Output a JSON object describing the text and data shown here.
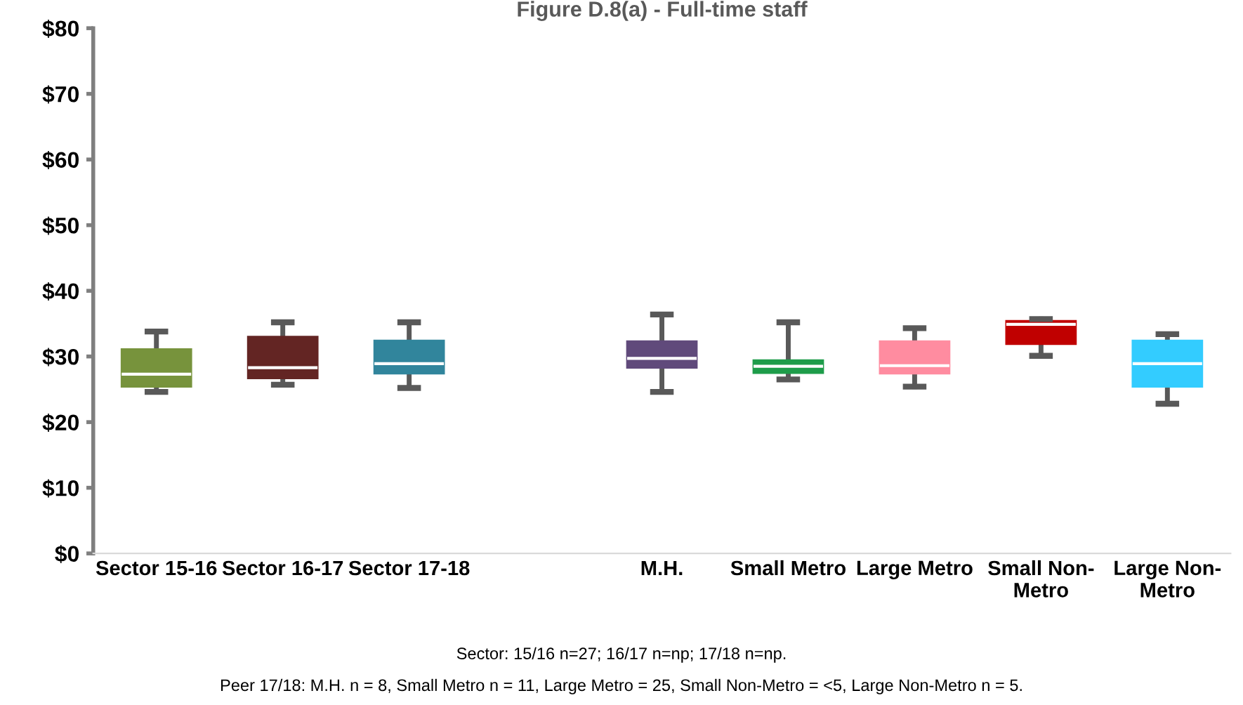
{
  "chart_data": {
    "type": "box",
    "title": "Figure D.8(a) - Full-time staff",
    "categories": [
      "Sector 15-16",
      "Sector 16-17",
      "Sector 17-18",
      null,
      "M.H.",
      "Small Metro",
      "Large Metro",
      "Small Non-\nMetro",
      "Large Non-\nMetro"
    ],
    "boxes": [
      {
        "low": 24.6,
        "q1": 25.4,
        "median": 27.3,
        "q3": 31.1,
        "high": 33.8
      },
      {
        "low": 25.7,
        "q1": 26.7,
        "median": 28.3,
        "q3": 33.0,
        "high": 35.2
      },
      {
        "low": 25.2,
        "q1": 27.4,
        "median": 28.9,
        "q3": 32.4,
        "high": 35.2
      },
      null,
      {
        "low": 24.6,
        "q1": 28.3,
        "median": 29.7,
        "q3": 32.3,
        "high": 36.4
      },
      {
        "low": 26.5,
        "q1": 27.5,
        "median": 28.5,
        "q3": 29.4,
        "high": 35.2
      },
      {
        "low": 25.4,
        "q1": 27.4,
        "median": 28.6,
        "q3": 32.3,
        "high": 34.3
      },
      {
        "low": 30.1,
        "q1": 31.9,
        "median": 34.9,
        "q3": 35.4,
        "high": 35.7
      },
      {
        "low": 22.8,
        "q1": 25.4,
        "median": 28.9,
        "q3": 32.4,
        "high": 33.4
      }
    ],
    "colors": [
      "#77933c",
      "#632523",
      "#31859c",
      null,
      "#604a7b",
      "#1e9c4a",
      "#ff8ca0",
      "#c00000",
      "#33ccff"
    ],
    "ylim": [
      0,
      80
    ],
    "yticks": [
      {
        "value": 0,
        "label": "$0"
      },
      {
        "value": 10,
        "label": "$10"
      },
      {
        "value": 20,
        "label": "$20"
      },
      {
        "value": 30,
        "label": "$30"
      },
      {
        "value": 40,
        "label": "$40"
      },
      {
        "value": 50,
        "label": "$50"
      },
      {
        "value": 60,
        "label": "$60"
      },
      {
        "value": 70,
        "label": "$70"
      },
      {
        "value": 80,
        "label": "$80"
      }
    ],
    "grid": false,
    "legend": false,
    "annotations": [
      "Sector: 15/16 n=27; 16/17 n=np; 17/18 n=np.",
      "Peer 17/18: M.H. n = 8, Small Metro n = 11, Large Metro = 25, Small Non-Metro = <5, Large Non-Metro n = 5."
    ]
  }
}
